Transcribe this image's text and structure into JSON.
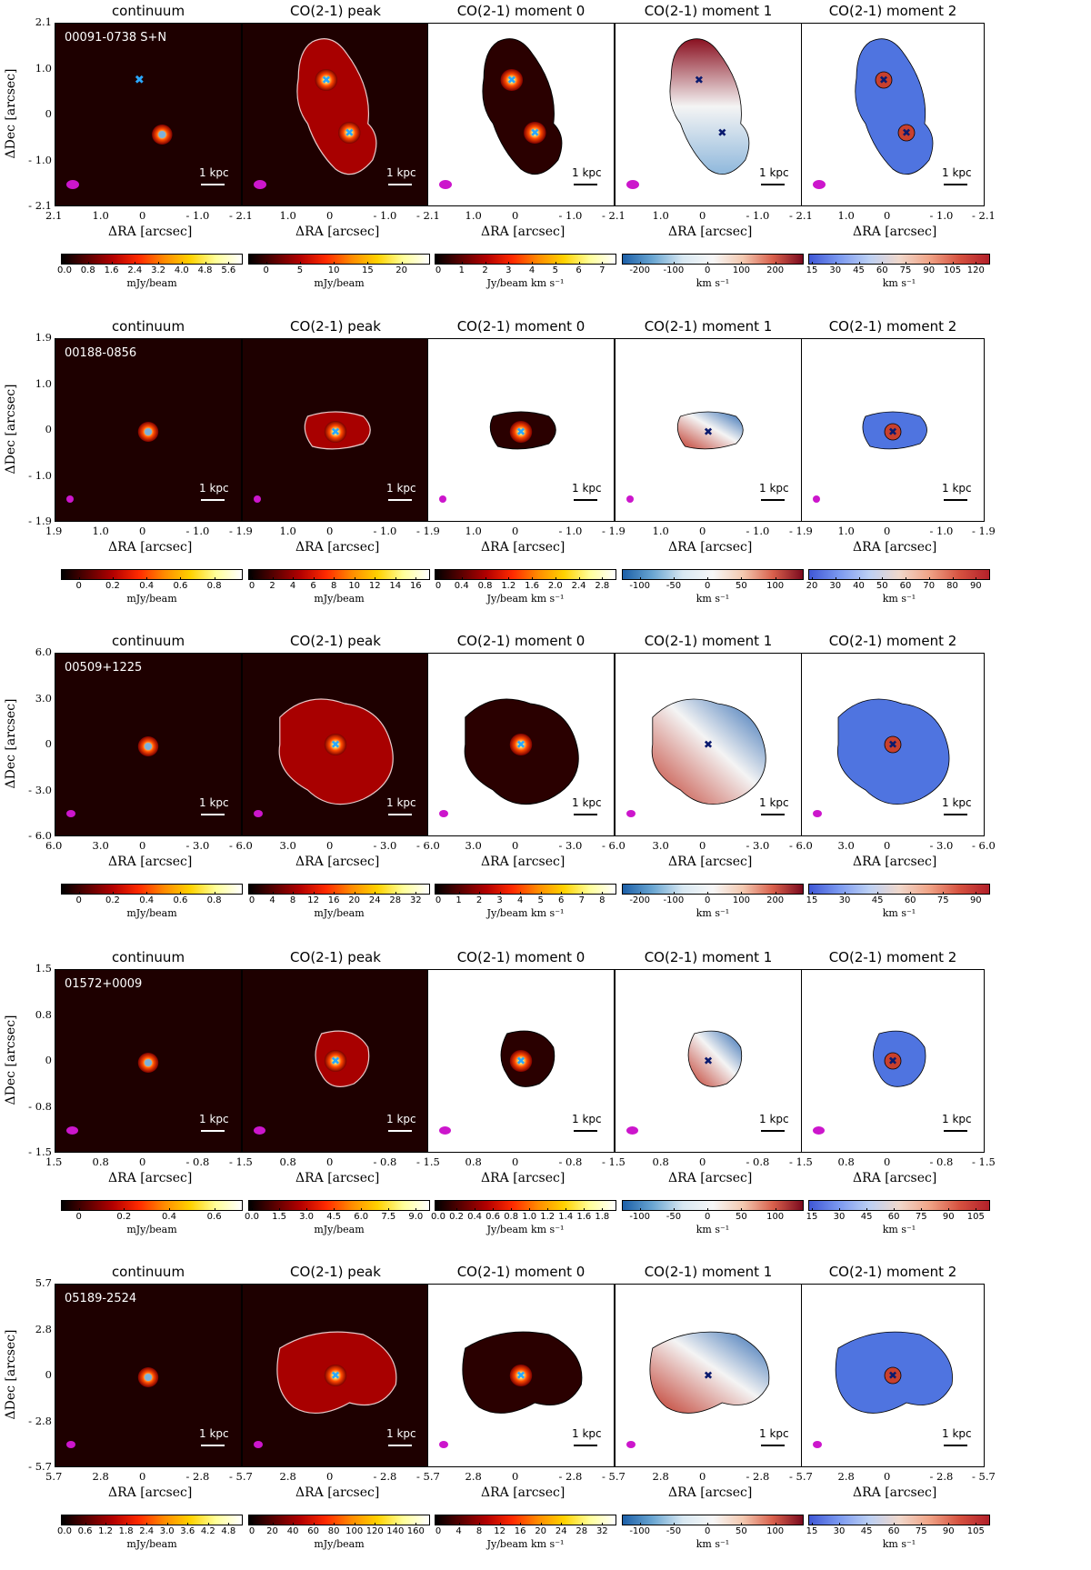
{
  "panel_titles": [
    "continuum",
    "CO(2-1) peak",
    "CO(2-1) moment 0",
    "CO(2-1) moment 1",
    "CO(2-1) moment 2"
  ],
  "axis_labels": {
    "x": "ΔRA [arcsec]",
    "y": "ΔDec [arcsec]"
  },
  "scale_bar_label": "1 kpc",
  "colormaps": {
    "hot": [
      "#000000",
      "#5a0000",
      "#b40000",
      "#ff2a00",
      "#ff8c00",
      "#ffd200",
      "#ffff9a",
      "#ffffff"
    ],
    "diverging": [
      "#1c5fa8",
      "#6aa6d2",
      "#d8e8f2",
      "#f7f7f7",
      "#f3c9b1",
      "#d9604c",
      "#7a0a1e"
    ],
    "coolwarm": [
      "#3f57d6",
      "#7b99f0",
      "#bcd0f4",
      "#f0d8cc",
      "#f0a487",
      "#d65240",
      "#b2202a"
    ]
  },
  "rows": [
    {
      "label": "00091-0738 S+N",
      "x_ticks": [
        "2.1",
        "1.0",
        "0",
        "- 1.0",
        "- 2.1"
      ],
      "y_ticks": [
        "2.1",
        "1.0",
        "0",
        "- 1.0",
        "- 2.1"
      ],
      "colorbars": [
        {
          "ticks": [
            "0.0",
            "0.8",
            "1.6",
            "2.4",
            "3.2",
            "4.0",
            "4.8",
            "5.6"
          ],
          "unit": "mJy/beam",
          "cmap": "hot"
        },
        {
          "ticks": [
            "0",
            "5",
            "10",
            "15",
            "20"
          ],
          "unit": "mJy/beam",
          "cmap": "hot"
        },
        {
          "ticks": [
            "0",
            "1",
            "2",
            "3",
            "4",
            "5",
            "6",
            "7"
          ],
          "unit": "Jy/beam km s⁻¹",
          "cmap": "hot"
        },
        {
          "ticks": [
            "-200",
            "-100",
            "0",
            "100",
            "200"
          ],
          "unit": "km s⁻¹",
          "cmap": "diverging"
        },
        {
          "ticks": [
            "15",
            "30",
            "45",
            "60",
            "75",
            "90",
            "105",
            "120"
          ],
          "unit": "km s⁻¹",
          "cmap": "coolwarm"
        }
      ]
    },
    {
      "label": "00188-0856",
      "x_ticks": [
        "1.9",
        "1.0",
        "0",
        "- 1.0",
        "- 1.9"
      ],
      "y_ticks": [
        "1.9",
        "1.0",
        "0",
        "- 1.0",
        "- 1.9"
      ],
      "colorbars": [
        {
          "ticks": [
            "0",
            "0.2",
            "0.4",
            "0.6",
            "0.8"
          ],
          "unit": "mJy/beam",
          "cmap": "hot"
        },
        {
          "ticks": [
            "0",
            "2",
            "4",
            "6",
            "8",
            "10",
            "12",
            "14",
            "16"
          ],
          "unit": "mJy/beam",
          "cmap": "hot"
        },
        {
          "ticks": [
            "0",
            "0.4",
            "0.8",
            "1.2",
            "1.6",
            "2.0",
            "2.4",
            "2.8"
          ],
          "unit": "Jy/beam km s⁻¹",
          "cmap": "hot"
        },
        {
          "ticks": [
            "-100",
            "-50",
            "0",
            "50",
            "100"
          ],
          "unit": "km s⁻¹",
          "cmap": "diverging"
        },
        {
          "ticks": [
            "20",
            "30",
            "40",
            "50",
            "60",
            "70",
            "80",
            "90"
          ],
          "unit": "km s⁻¹",
          "cmap": "coolwarm"
        }
      ]
    },
    {
      "label": "00509+1225",
      "x_ticks": [
        "6.0",
        "3.0",
        "0",
        "- 3.0",
        "- 6.0"
      ],
      "y_ticks": [
        "6.0",
        "3.0",
        "0",
        "- 3.0",
        "- 6.0"
      ],
      "colorbars": [
        {
          "ticks": [
            "0",
            "0.2",
            "0.4",
            "0.6",
            "0.8"
          ],
          "unit": "mJy/beam",
          "cmap": "hot"
        },
        {
          "ticks": [
            "0",
            "4",
            "8",
            "12",
            "16",
            "20",
            "24",
            "28",
            "32"
          ],
          "unit": "mJy/beam",
          "cmap": "hot"
        },
        {
          "ticks": [
            "0",
            "1",
            "2",
            "3",
            "4",
            "5",
            "6",
            "7",
            "8"
          ],
          "unit": "Jy/beam km s⁻¹",
          "cmap": "hot"
        },
        {
          "ticks": [
            "-200",
            "-100",
            "0",
            "100",
            "200"
          ],
          "unit": "km s⁻¹",
          "cmap": "diverging"
        },
        {
          "ticks": [
            "15",
            "30",
            "45",
            "60",
            "75",
            "90"
          ],
          "unit": "km s⁻¹",
          "cmap": "coolwarm"
        }
      ]
    },
    {
      "label": "01572+0009",
      "x_ticks": [
        "1.5",
        "0.8",
        "0",
        "- 0.8",
        "- 1.5"
      ],
      "y_ticks": [
        "1.5",
        "0.8",
        "0",
        "- 0.8",
        "- 1.5"
      ],
      "colorbars": [
        {
          "ticks": [
            "0",
            "0.2",
            "0.4",
            "0.6"
          ],
          "unit": "mJy/beam",
          "cmap": "hot"
        },
        {
          "ticks": [
            "0.0",
            "1.5",
            "3.0",
            "4.5",
            "6.0",
            "7.5",
            "9.0"
          ],
          "unit": "mJy/beam",
          "cmap": "hot"
        },
        {
          "ticks": [
            "0.0",
            "0.2",
            "0.4",
            "0.6",
            "0.8",
            "1.0",
            "1.2",
            "1.4",
            "1.6",
            "1.8"
          ],
          "unit": "Jy/beam km s⁻¹",
          "cmap": "hot"
        },
        {
          "ticks": [
            "-100",
            "-50",
            "0",
            "50",
            "100"
          ],
          "unit": "km s⁻¹",
          "cmap": "diverging"
        },
        {
          "ticks": [
            "15",
            "30",
            "45",
            "60",
            "75",
            "90",
            "105"
          ],
          "unit": "km s⁻¹",
          "cmap": "coolwarm"
        }
      ]
    },
    {
      "label": "05189-2524",
      "x_ticks": [
        "5.7",
        "2.8",
        "0",
        "- 2.8",
        "- 5.7"
      ],
      "y_ticks": [
        "5.7",
        "2.8",
        "0",
        "- 2.8",
        "- 5.7"
      ],
      "colorbars": [
        {
          "ticks": [
            "0.0",
            "0.6",
            "1.2",
            "1.8",
            "2.4",
            "3.0",
            "3.6",
            "4.2",
            "4.8"
          ],
          "unit": "mJy/beam",
          "cmap": "hot"
        },
        {
          "ticks": [
            "0",
            "20",
            "40",
            "60",
            "80",
            "100",
            "120",
            "140",
            "160"
          ],
          "unit": "mJy/beam",
          "cmap": "hot"
        },
        {
          "ticks": [
            "0",
            "4",
            "8",
            "12",
            "16",
            "20",
            "24",
            "28",
            "32"
          ],
          "unit": "Jy/beam km s⁻¹",
          "cmap": "hot"
        },
        {
          "ticks": [
            "-100",
            "-50",
            "0",
            "50",
            "100"
          ],
          "unit": "km s⁻¹",
          "cmap": "diverging"
        },
        {
          "ticks": [
            "15",
            "30",
            "45",
            "60",
            "75",
            "90",
            "105"
          ],
          "unit": "km s⁻¹",
          "cmap": "coolwarm"
        }
      ]
    }
  ]
}
